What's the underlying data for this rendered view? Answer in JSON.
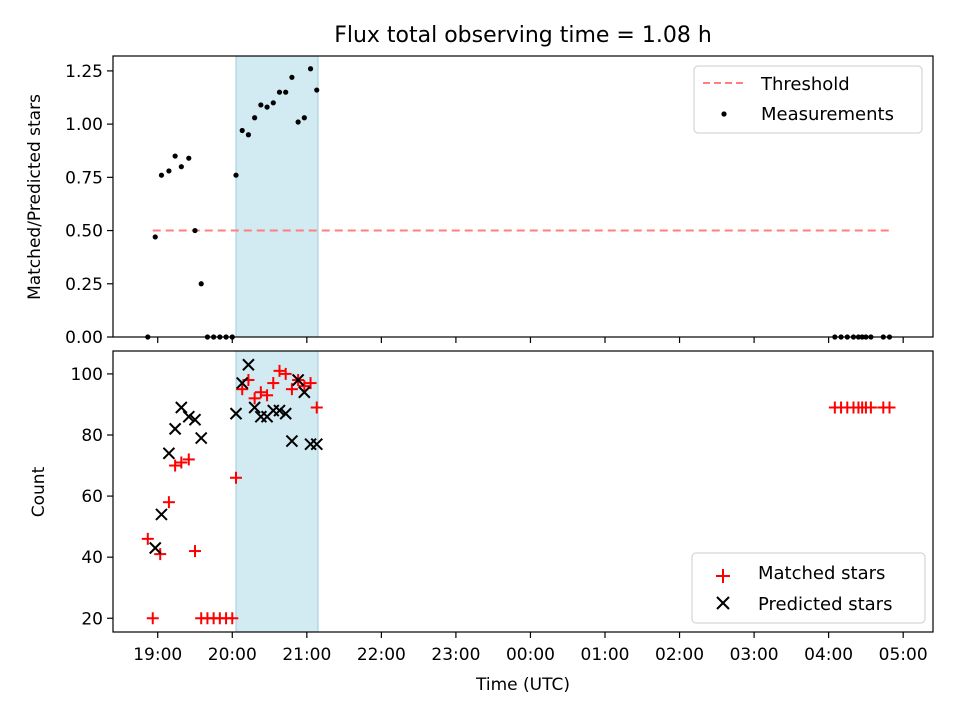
{
  "figure": {
    "title": "Flux total observing time = 1.08 h"
  },
  "chart_data": [
    {
      "type": "scatter",
      "panel": "top",
      "title": "Flux total observing time = 1.08 h",
      "xlabel": "",
      "ylabel": "Matched/Predicted stars",
      "xlim": [
        "18:24",
        "05:24"
      ],
      "ylim": [
        0,
        1.32
      ],
      "yticks": [
        0.0,
        0.25,
        0.5,
        0.75,
        1.0,
        1.25
      ],
      "ytick_labels": [
        "0.00",
        "0.25",
        "0.50",
        "0.75",
        "1.00",
        "1.25"
      ],
      "highlight_span": {
        "x": [
          "20:03",
          "21:09"
        ],
        "color": "#add8e6"
      },
      "legend": {
        "position": "upper-right",
        "entries": [
          "Threshold",
          "Measurements"
        ]
      },
      "series": [
        {
          "name": "Threshold",
          "kind": "line",
          "style": "dashed",
          "color": "#ff7f7f",
          "x": [
            "18:56",
            "04:52"
          ],
          "y": [
            0.5,
            0.5
          ]
        },
        {
          "name": "Measurements",
          "kind": "scatter",
          "marker": "dot",
          "color": "#000000",
          "points": [
            {
              "x": "18:52",
              "y": 0.0
            },
            {
              "x": "18:58",
              "y": 0.47
            },
            {
              "x": "19:03",
              "y": 0.76
            },
            {
              "x": "19:09",
              "y": 0.78
            },
            {
              "x": "19:14",
              "y": 0.85
            },
            {
              "x": "19:19",
              "y": 0.8
            },
            {
              "x": "19:25",
              "y": 0.84
            },
            {
              "x": "19:30",
              "y": 0.5
            },
            {
              "x": "19:35",
              "y": 0.25
            },
            {
              "x": "19:40",
              "y": 0.0
            },
            {
              "x": "19:45",
              "y": 0.0
            },
            {
              "x": "19:50",
              "y": 0.0
            },
            {
              "x": "19:55",
              "y": 0.0
            },
            {
              "x": "20:00",
              "y": 0.0
            },
            {
              "x": "20:03",
              "y": 0.76
            },
            {
              "x": "20:08",
              "y": 0.97
            },
            {
              "x": "20:13",
              "y": 0.95
            },
            {
              "x": "20:18",
              "y": 1.03
            },
            {
              "x": "20:23",
              "y": 1.09
            },
            {
              "x": "20:28",
              "y": 1.08
            },
            {
              "x": "20:33",
              "y": 1.1
            },
            {
              "x": "20:38",
              "y": 1.15
            },
            {
              "x": "20:43",
              "y": 1.15
            },
            {
              "x": "20:48",
              "y": 1.22
            },
            {
              "x": "20:53",
              "y": 1.01
            },
            {
              "x": "20:58",
              "y": 1.03
            },
            {
              "x": "21:03",
              "y": 1.26
            },
            {
              "x": "21:08",
              "y": 1.16
            },
            {
              "x": "04:05",
              "y": 0.0
            },
            {
              "x": "04:10",
              "y": 0.0
            },
            {
              "x": "04:15",
              "y": 0.0
            },
            {
              "x": "04:20",
              "y": 0.0
            },
            {
              "x": "04:24",
              "y": 0.0
            },
            {
              "x": "04:27",
              "y": 0.0
            },
            {
              "x": "04:30",
              "y": 0.0
            },
            {
              "x": "04:34",
              "y": 0.0
            },
            {
              "x": "04:44",
              "y": 0.0
            },
            {
              "x": "04:49",
              "y": 0.0
            }
          ]
        }
      ]
    },
    {
      "type": "scatter",
      "panel": "bottom",
      "xlabel": "Time (UTC)",
      "ylabel": "Count",
      "xlim": [
        "18:24",
        "05:24"
      ],
      "ylim": [
        15.5,
        107.5
      ],
      "yticks": [
        20,
        40,
        60,
        80,
        100
      ],
      "ytick_labels": [
        "20",
        "40",
        "60",
        "80",
        "100"
      ],
      "xticks": [
        "19:00",
        "20:00",
        "21:00",
        "22:00",
        "23:00",
        "00:00",
        "01:00",
        "02:00",
        "03:00",
        "04:00",
        "05:00"
      ],
      "xtick_labels": [
        "19:00",
        "20:00",
        "21:00",
        "22:00",
        "23:00",
        "00:00",
        "01:00",
        "02:00",
        "03:00",
        "04:00",
        "05:00"
      ],
      "highlight_span": {
        "x": [
          "20:03",
          "21:09"
        ],
        "color": "#add8e6"
      },
      "legend": {
        "position": "lower-right",
        "entries": [
          "Matched stars",
          "Predicted stars"
        ]
      },
      "series": [
        {
          "name": "Matched stars",
          "marker": "plus",
          "color": "#ff0000",
          "points": [
            {
              "x": "18:52",
              "y": 46
            },
            {
              "x": "18:56",
              "y": 20
            },
            {
              "x": "19:02",
              "y": 41
            },
            {
              "x": "19:09",
              "y": 58
            },
            {
              "x": "19:14",
              "y": 70
            },
            {
              "x": "19:19",
              "y": 71
            },
            {
              "x": "19:25",
              "y": 72
            },
            {
              "x": "19:30",
              "y": 42
            },
            {
              "x": "19:35",
              "y": 20
            },
            {
              "x": "19:40",
              "y": 20
            },
            {
              "x": "19:45",
              "y": 20
            },
            {
              "x": "19:50",
              "y": 20
            },
            {
              "x": "19:55",
              "y": 20
            },
            {
              "x": "20:00",
              "y": 20
            },
            {
              "x": "20:03",
              "y": 66
            },
            {
              "x": "20:08",
              "y": 95
            },
            {
              "x": "20:13",
              "y": 98
            },
            {
              "x": "20:18",
              "y": 92
            },
            {
              "x": "20:23",
              "y": 94
            },
            {
              "x": "20:28",
              "y": 93
            },
            {
              "x": "20:33",
              "y": 97
            },
            {
              "x": "20:38",
              "y": 101
            },
            {
              "x": "20:43",
              "y": 100
            },
            {
              "x": "20:48",
              "y": 95
            },
            {
              "x": "20:53",
              "y": 98
            },
            {
              "x": "20:58",
              "y": 96
            },
            {
              "x": "21:03",
              "y": 97
            },
            {
              "x": "21:08",
              "y": 89
            },
            {
              "x": "04:05",
              "y": 89
            },
            {
              "x": "04:10",
              "y": 89
            },
            {
              "x": "04:15",
              "y": 89
            },
            {
              "x": "04:20",
              "y": 89
            },
            {
              "x": "04:24",
              "y": 89
            },
            {
              "x": "04:27",
              "y": 89
            },
            {
              "x": "04:30",
              "y": 89
            },
            {
              "x": "04:34",
              "y": 89
            },
            {
              "x": "04:44",
              "y": 89
            },
            {
              "x": "04:49",
              "y": 89
            }
          ]
        },
        {
          "name": "Predicted stars",
          "marker": "x",
          "color": "#000000",
          "points": [
            {
              "x": "18:58",
              "y": 43
            },
            {
              "x": "19:03",
              "y": 54
            },
            {
              "x": "19:09",
              "y": 74
            },
            {
              "x": "19:14",
              "y": 82
            },
            {
              "x": "19:19",
              "y": 89
            },
            {
              "x": "19:25",
              "y": 86
            },
            {
              "x": "19:30",
              "y": 85
            },
            {
              "x": "19:35",
              "y": 79
            },
            {
              "x": "20:03",
              "y": 87
            },
            {
              "x": "20:08",
              "y": 97
            },
            {
              "x": "20:13",
              "y": 103
            },
            {
              "x": "20:18",
              "y": 89
            },
            {
              "x": "20:23",
              "y": 86
            },
            {
              "x": "20:28",
              "y": 86
            },
            {
              "x": "20:33",
              "y": 88
            },
            {
              "x": "20:38",
              "y": 88
            },
            {
              "x": "20:43",
              "y": 87
            },
            {
              "x": "20:48",
              "y": 78
            },
            {
              "x": "20:53",
              "y": 98
            },
            {
              "x": "20:58",
              "y": 94
            },
            {
              "x": "21:03",
              "y": 77
            },
            {
              "x": "21:08",
              "y": 77
            }
          ]
        }
      ]
    }
  ]
}
